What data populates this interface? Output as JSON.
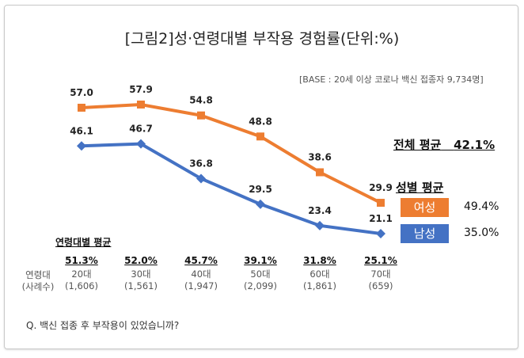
{
  "title": "[그림2]성·연령대별 부작용 경험률(단위:%)",
  "base_note": "[BASE : 20세 이상 코로나 백신 접종자 9,734명]",
  "overall": {
    "label": "전체 평균",
    "value": "42.1%"
  },
  "gender_avg": {
    "label": "성별 평균",
    "female": {
      "label": "여성",
      "value": "49.4%",
      "color": "#ED7D31"
    },
    "male": {
      "label": "남성",
      "value": "35.0%",
      "color": "#4472C4"
    }
  },
  "age_avg_label": "연령대별 평균",
  "row_labels": {
    "age": "연령대",
    "n": "(사례수)"
  },
  "ages": [
    {
      "avg": "51.3%",
      "label": "20대",
      "n": "(1,606)"
    },
    {
      "avg": "52.0%",
      "label": "30대",
      "n": "(1,561)"
    },
    {
      "avg": "45.7%",
      "label": "40대",
      "n": "(1,947)"
    },
    {
      "avg": "39.1%",
      "label": "50대",
      "n": "(2,099)"
    },
    {
      "avg": "31.8%",
      "label": "60대",
      "n": "(1,861)"
    },
    {
      "avg": "25.1%",
      "label": "70대",
      "n": "(659)"
    }
  ],
  "question": "Q. 백신 접종 후 부작용이 있었습니까?",
  "chart_data": {
    "type": "line",
    "categories": [
      "20대",
      "30대",
      "40대",
      "50대",
      "60대",
      "70대"
    ],
    "series": [
      {
        "name": "여성",
        "color": "#ED7D31",
        "marker": "square",
        "values": [
          57.0,
          57.9,
          54.8,
          48.8,
          38.6,
          29.9
        ]
      },
      {
        "name": "남성",
        "color": "#4472C4",
        "marker": "diamond",
        "values": [
          46.1,
          46.7,
          36.8,
          29.5,
          23.4,
          21.1
        ]
      }
    ],
    "grid": false
  }
}
